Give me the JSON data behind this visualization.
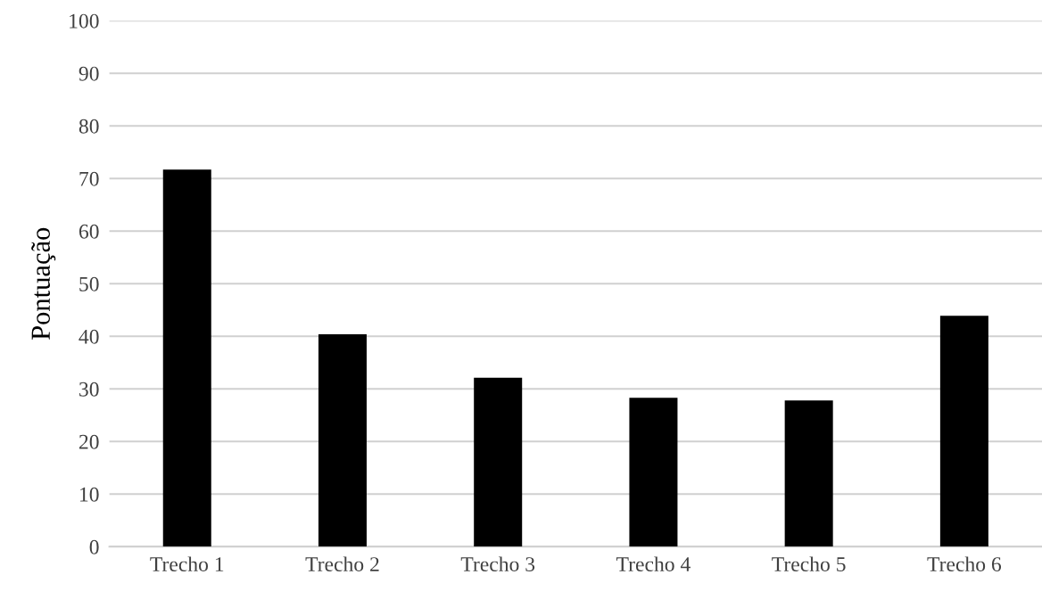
{
  "chart_data": {
    "type": "bar",
    "ylabel": "Pontuação",
    "categories": [
      "Trecho 1",
      "Trecho 2",
      "Trecho 3",
      "Trecho 4",
      "Trecho 5",
      "Trecho 6"
    ],
    "values": [
      71.7,
      40.4,
      32.1,
      28.3,
      27.8,
      43.9
    ],
    "color": "#000000",
    "ylim": [
      0,
      100
    ],
    "yticks": [
      0,
      10,
      20,
      30,
      40,
      50,
      60,
      70,
      80,
      90,
      100
    ],
    "grid": "y",
    "legend": false
  }
}
